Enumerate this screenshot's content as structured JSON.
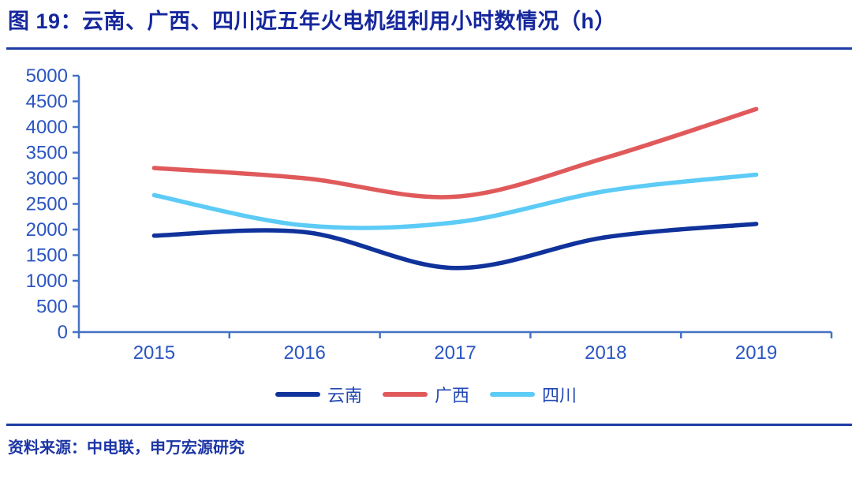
{
  "figure": {
    "title": "图 19：云南、广西、四川近五年火电机组利用小时数情况（h）",
    "source": "资料来源：中电联，申万宏源研究"
  },
  "colors": {
    "title_text": "#16279D",
    "divider": "#1E3CA3",
    "axis_line": "#4472C4",
    "tick_label": "#2B55C2",
    "legend_text": "#2247B4",
    "source_text": "#1C35A6",
    "background": "#FFFFFF"
  },
  "chart_data": {
    "type": "line",
    "title": "云南、广西、四川近五年火电机组利用小时数情况（h）",
    "categories": [
      "2015",
      "2016",
      "2017",
      "2018",
      "2019"
    ],
    "series": [
      {
        "name": "云南",
        "color": "#10329B",
        "values": [
          1880,
          1950,
          1250,
          1850,
          2110
        ]
      },
      {
        "name": "广西",
        "color": "#E05A5B",
        "values": [
          3200,
          3000,
          2640,
          3400,
          4350
        ]
      },
      {
        "name": "四川",
        "color": "#5CCBF6",
        "values": [
          2670,
          2080,
          2140,
          2750,
          3070
        ]
      }
    ],
    "ylim": [
      0,
      5000
    ],
    "yticks": [
      0,
      500,
      1000,
      1500,
      2000,
      2500,
      3000,
      3500,
      4000,
      4500,
      5000
    ],
    "xlabel": "",
    "ylabel": "",
    "grid": false,
    "legend_position": "bottom",
    "line_style": "smooth"
  }
}
